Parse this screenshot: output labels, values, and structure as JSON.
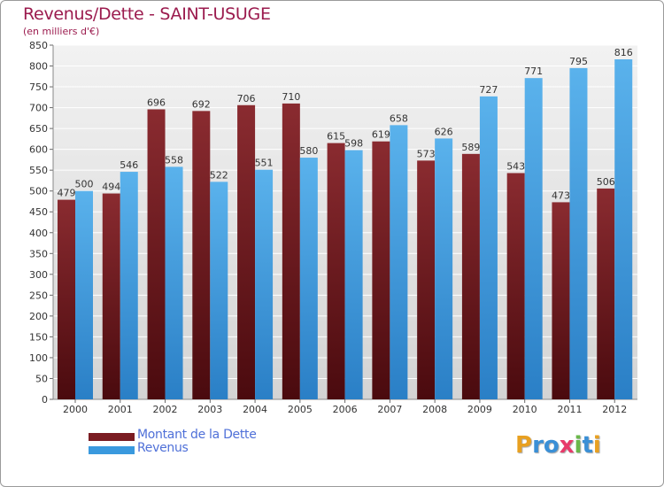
{
  "header": {
    "title": "Revenus/Dette - SAINT-USUGE",
    "subtitle": "(en milliers d'€)"
  },
  "colors": {
    "dette": "#7a1c22",
    "revenus": "#3a99de",
    "axis_text": "#333333",
    "title": "#9b1b4e",
    "legend_text": "#4f70d8",
    "plot_bg": "#eaeaea",
    "grid": "#ffffff"
  },
  "chart_data": {
    "type": "bar",
    "title": "Revenus/Dette - SAINT-USUGE",
    "subtitle": "(en milliers d'€)",
    "categories": [
      "2000",
      "2001",
      "2002",
      "2003",
      "2004",
      "2005",
      "2006",
      "2007",
      "2008",
      "2009",
      "2010",
      "2011",
      "2012"
    ],
    "series": [
      {
        "name": "Montant de la Dette",
        "color": "#7a1c22",
        "values": [
          479,
          494,
          696,
          692,
          706,
          710,
          615,
          619,
          573,
          589,
          543,
          473,
          506
        ]
      },
      {
        "name": "Revenus",
        "color": "#3a99de",
        "values": [
          500,
          546,
          558,
          522,
          551,
          580,
          598,
          658,
          626,
          727,
          771,
          795,
          816
        ]
      }
    ],
    "ylim": [
      0,
      850
    ],
    "yticks": [
      0,
      50,
      100,
      150,
      200,
      250,
      300,
      350,
      400,
      450,
      500,
      550,
      600,
      650,
      700,
      750,
      800,
      850
    ],
    "grid": true,
    "legend": "bottom-left",
    "xlabel": "",
    "ylabel": ""
  },
  "legend": {
    "items": [
      {
        "label": "Montant de la Dette",
        "color": "#7a1c22"
      },
      {
        "label": "Revenus",
        "color": "#3a99de"
      }
    ]
  },
  "logo": {
    "letters": [
      "P",
      "r",
      "o",
      "x",
      "i",
      "t",
      "i"
    ],
    "colors": [
      "#e8a020",
      "#3a8fd6",
      "#3a8fd6",
      "#e83a6a",
      "#6ab84a",
      "#3a8fd6",
      "#e8a020"
    ]
  }
}
